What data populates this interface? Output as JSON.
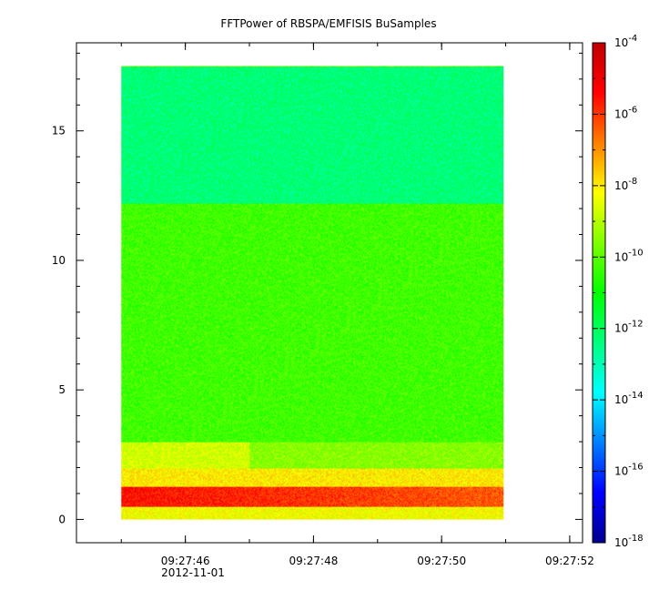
{
  "chart_data": {
    "type": "heatmap",
    "title": "FFTPower of RBSPA/EMFISIS  BuSamples",
    "xlabel": "",
    "ylabel": "",
    "date_label": "2012-11-01",
    "x_ticks": [
      "09:27:46",
      "09:27:48",
      "09:27:50",
      "09:27:52"
    ],
    "x_tick_seconds": [
      46,
      48,
      50,
      52
    ],
    "xlim_seconds": [
      44.3,
      52.2
    ],
    "data_x_range_seconds": [
      45.0,
      50.97
    ],
    "y_ticks": [
      "0",
      "5",
      "10",
      "15"
    ],
    "y_tick_values": [
      0,
      5,
      10,
      15
    ],
    "ylim": [
      -0.9,
      18.4
    ],
    "data_y_range": [
      0,
      17.5
    ],
    "colorbar": {
      "scale": "log",
      "range": [
        1e-18,
        0.0001
      ],
      "tick_exponents": [
        -18,
        -16,
        -14,
        -12,
        -10,
        -8,
        -6,
        -4
      ],
      "tick_base": "10",
      "colors": [
        "#00008f",
        "#0000ff",
        "#007fff",
        "#00ffff",
        "#00ff7f",
        "#00ff00",
        "#7fff00",
        "#ffff00",
        "#ff7f00",
        "#ff0000",
        "#bf0000"
      ]
    },
    "bands": [
      {
        "y": [
          12.2,
          17.5
        ],
        "log10_power": -12.3
      },
      {
        "y": [
          3.0,
          12.2
        ],
        "log10_power": -10.3
      },
      {
        "y": [
          2.0,
          3.0
        ],
        "log10_power": -8.7
      },
      {
        "y": [
          1.3,
          2.0
        ],
        "log10_power": -8.0
      },
      {
        "y": [
          0.5,
          1.3
        ],
        "log10_power": -5.5
      },
      {
        "y": [
          0.0,
          0.5
        ],
        "log10_power": -8.3
      }
    ]
  }
}
